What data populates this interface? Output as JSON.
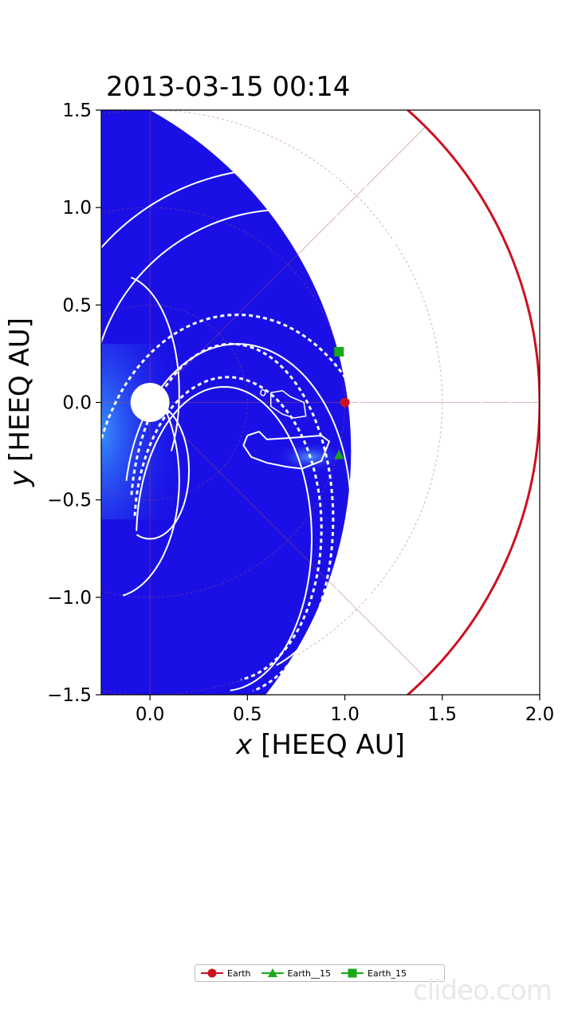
{
  "chart_data": {
    "type": "heatmap",
    "title": "2013-03-15 00:14",
    "xlabel_var": "x",
    "xlabel_unit": " [HEEQ AU]",
    "ylabel_var": "y",
    "ylabel_unit": " [HEEQ AU]",
    "xlim": [
      -0.25,
      2.0
    ],
    "ylim": [
      -1.5,
      1.5
    ],
    "xticks": [
      0.0,
      0.5,
      1.0,
      1.5,
      2.0
    ],
    "yticks": [
      -1.5,
      -1.0,
      -0.5,
      0.0,
      0.5,
      1.0,
      1.5
    ],
    "xtick_labels": [
      "0.0",
      "0.5",
      "1.0",
      "1.5",
      "2.0"
    ],
    "ytick_labels": [
      "−1.5",
      "−1.0",
      "−0.5",
      "0.0",
      "0.5",
      "1.0",
      "1.5"
    ],
    "domain_outer_radius_au": 2.0,
    "sun_radius_au": 0.1,
    "colors": {
      "background_field": "#1a10e6",
      "boundary": "#cc1122",
      "contour": "#ffffff",
      "grid": "#b05050",
      "earth": "#cc1122",
      "spacecraft": "#18a818"
    },
    "markers": [
      {
        "name": "Earth",
        "shape": "circle",
        "color": "#cc1122",
        "x": 1.0,
        "y": 0.0
      },
      {
        "name": "Earth__15",
        "shape": "triangle",
        "color": "#18a818",
        "x": 0.97,
        "y": -0.27
      },
      {
        "name": "Earth_15",
        "shape": "square",
        "color": "#18a818",
        "x": 0.97,
        "y": 0.26
      }
    ],
    "legend": {
      "placement": "bottom-center",
      "entries": [
        {
          "label": "Earth",
          "shape": "circle",
          "color": "#cc1122"
        },
        {
          "label": "Earth__15",
          "shape": "triangle",
          "color": "#18a818"
        },
        {
          "label": "Earth_15",
          "shape": "square",
          "color": "#18a818"
        }
      ]
    }
  },
  "watermark": "clideo.com"
}
